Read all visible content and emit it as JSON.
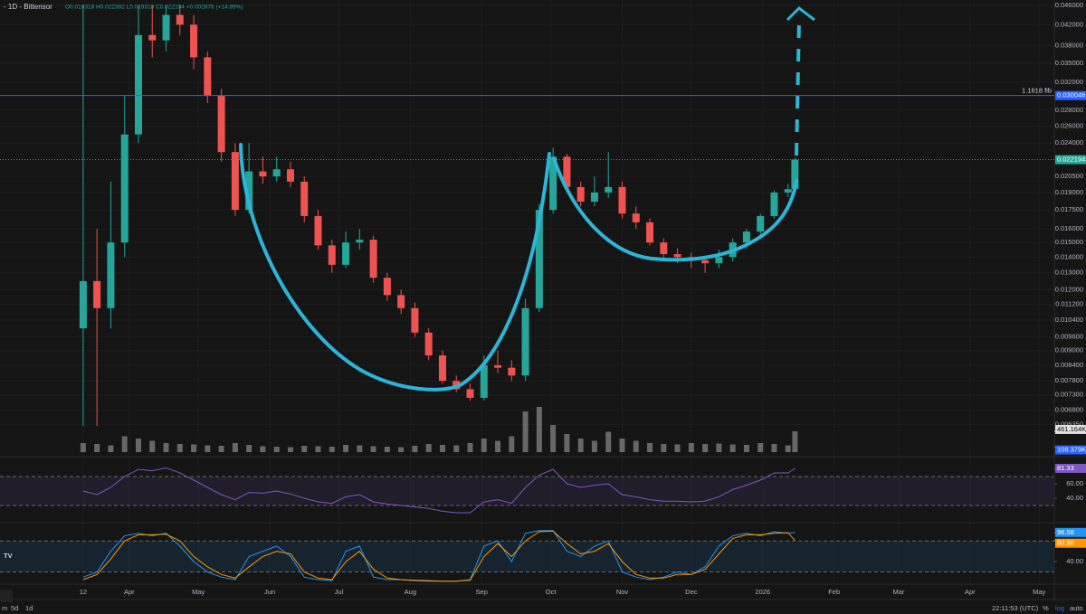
{
  "header": {
    "title": "- 1D - Bittensor",
    "ohlc": "O0.019318 H0.022382 L0.019318 C0.022194 +0.002876 (+14.89%)"
  },
  "toolbar": {
    "ranges": [
      "m",
      "5d",
      "1d"
    ],
    "clock": "22:11:53 (UTC)",
    "options": [
      "%",
      "log",
      "auto"
    ]
  },
  "chart_data": [
    {
      "type": "candlestick",
      "log": true,
      "grid": true,
      "up_color": "#26a69a",
      "down_color": "#ef5350",
      "x": [
        0,
        6,
        12,
        18,
        24,
        30,
        36,
        42,
        48,
        54,
        60,
        66,
        72,
        78,
        84,
        90,
        96,
        102,
        108,
        114,
        120,
        126,
        132,
        138,
        144,
        150,
        156,
        162,
        168,
        174,
        180,
        186,
        192,
        198,
        204,
        210,
        216,
        222,
        228,
        234,
        240,
        246,
        252,
        258,
        264,
        270,
        276,
        282,
        288,
        294,
        300,
        306,
        309
      ],
      "open": [
        0.01,
        0.0125,
        0.011,
        0.015,
        0.025,
        0.04,
        0.039,
        0.044,
        0.042,
        0.036,
        0.03,
        0.023,
        0.0175,
        0.021,
        0.0205,
        0.0212,
        0.02,
        0.017,
        0.0148,
        0.0135,
        0.015,
        0.0152,
        0.0127,
        0.0117,
        0.011,
        0.0098,
        0.0088,
        0.0078,
        0.0075,
        0.0072,
        0.0084,
        0.0083,
        0.008,
        0.011,
        0.0175,
        0.0225,
        0.0195,
        0.0182,
        0.019,
        0.0195,
        0.0172,
        0.0165,
        0.015,
        0.0142,
        0.014,
        0.0138,
        0.0136,
        0.014,
        0.015,
        0.0158,
        0.017,
        0.019,
        0.019318
      ],
      "high": [
        0.046,
        0.016,
        0.02,
        0.03,
        0.046,
        0.046,
        0.046,
        0.046,
        0.044,
        0.037,
        0.031,
        0.024,
        0.024,
        0.0225,
        0.0225,
        0.022,
        0.0205,
        0.0175,
        0.0152,
        0.0158,
        0.016,
        0.0155,
        0.013,
        0.012,
        0.0113,
        0.01,
        0.009,
        0.008,
        0.0077,
        0.0088,
        0.009,
        0.0086,
        0.0115,
        0.018,
        0.0235,
        0.0228,
        0.02,
        0.0205,
        0.023,
        0.02,
        0.0178,
        0.0168,
        0.0153,
        0.0146,
        0.0143,
        0.0141,
        0.0145,
        0.0153,
        0.016,
        0.0172,
        0.0192,
        0.0198,
        0.022382
      ],
      "low": [
        0.0063,
        0.0063,
        0.01,
        0.014,
        0.024,
        0.036,
        0.037,
        0.04,
        0.034,
        0.029,
        0.022,
        0.017,
        0.0172,
        0.0198,
        0.02,
        0.0195,
        0.0165,
        0.0145,
        0.013,
        0.0133,
        0.0145,
        0.0124,
        0.0114,
        0.0107,
        0.0096,
        0.0086,
        0.0077,
        0.0074,
        0.0071,
        0.0071,
        0.0081,
        0.0078,
        0.0078,
        0.0108,
        0.0172,
        0.019,
        0.0178,
        0.0178,
        0.0185,
        0.0168,
        0.016,
        0.0148,
        0.0139,
        0.0136,
        0.0133,
        0.013,
        0.0133,
        0.0137,
        0.0146,
        0.0155,
        0.0168,
        0.0186,
        0.019318
      ],
      "close": [
        0.0125,
        0.011,
        0.015,
        0.025,
        0.04,
        0.039,
        0.044,
        0.042,
        0.036,
        0.03,
        0.023,
        0.0175,
        0.021,
        0.0205,
        0.0212,
        0.02,
        0.017,
        0.0148,
        0.0135,
        0.015,
        0.0152,
        0.0127,
        0.0117,
        0.011,
        0.0098,
        0.0088,
        0.0078,
        0.0075,
        0.0072,
        0.0084,
        0.0083,
        0.008,
        0.011,
        0.0175,
        0.0225,
        0.0195,
        0.0182,
        0.019,
        0.0195,
        0.0172,
        0.0165,
        0.015,
        0.0142,
        0.014,
        0.0138,
        0.0136,
        0.014,
        0.015,
        0.0158,
        0.017,
        0.019,
        0.0193,
        0.022194
      ],
      "volume": [
        200,
        180,
        150,
        350,
        300,
        250,
        200,
        180,
        170,
        150,
        140,
        200,
        160,
        130,
        120,
        110,
        140,
        130,
        120,
        160,
        150,
        130,
        120,
        110,
        140,
        180,
        160,
        150,
        200,
        300,
        250,
        350,
        900,
        1000,
        600,
        400,
        300,
        250,
        450,
        300,
        250,
        200,
        180,
        170,
        200,
        180,
        190,
        170,
        160,
        200,
        180,
        150,
        461.164
      ],
      "vlim": [
        0,
        1300
      ],
      "volume_label": {
        "value": 461.164,
        "label": "461.164K"
      },
      "volume_ma_label": {
        "value": 108.379,
        "label": "108.379K"
      },
      "xlim": [
        -36.1,
        421.6
      ],
      "xticks": [
        {
          "value": 0,
          "label": "12"
        },
        {
          "value": 20,
          "label": "Apr"
        },
        {
          "value": 50,
          "label": "May"
        },
        {
          "value": 81,
          "label": "Jun"
        },
        {
          "value": 111,
          "label": "Jul"
        },
        {
          "value": 142,
          "label": "Aug"
        },
        {
          "value": 173,
          "label": "Sep"
        },
        {
          "value": 203,
          "label": "Oct"
        },
        {
          "value": 234,
          "label": "Nov"
        },
        {
          "value": 264,
          "label": "Dec"
        },
        {
          "value": 295,
          "label": "2026"
        },
        {
          "value": 326,
          "label": "Feb"
        },
        {
          "value": 354,
          "label": "Mar"
        },
        {
          "value": 385,
          "label": "Apr"
        },
        {
          "value": 415,
          "label": "May"
        }
      ],
      "ylim": [
        0.00557,
        0.0472
      ],
      "yticks": [
        {
          "value": 0.046,
          "label": "0.046000"
        },
        {
          "value": 0.042,
          "label": "0.042000"
        },
        {
          "value": 0.038,
          "label": "0.038000"
        },
        {
          "value": 0.035,
          "label": "0.035000"
        },
        {
          "value": 0.032,
          "label": "0.032000"
        },
        {
          "value": 0.028,
          "label": "0.028000"
        },
        {
          "value": 0.026,
          "label": "0.026000"
        },
        {
          "value": 0.024,
          "label": "0.024000"
        },
        {
          "value": 0.0205,
          "label": "0.020500"
        },
        {
          "value": 0.019,
          "label": "0.019000"
        },
        {
          "value": 0.0175,
          "label": "0.017500"
        },
        {
          "value": 0.016,
          "label": "0.016000"
        },
        {
          "value": 0.015,
          "label": "0.015000"
        },
        {
          "value": 0.014,
          "label": "0.014000"
        },
        {
          "value": 0.013,
          "label": "0.013000"
        },
        {
          "value": 0.012,
          "label": "0.012000"
        },
        {
          "value": 0.0112,
          "label": "0.011200"
        },
        {
          "value": 0.0104,
          "label": "0.010400"
        },
        {
          "value": 0.0096,
          "label": "0.009600"
        },
        {
          "value": 0.009,
          "label": "0.009000"
        },
        {
          "value": 0.0084,
          "label": "0.008400"
        },
        {
          "value": 0.0078,
          "label": "0.007800"
        },
        {
          "value": 0.0073,
          "label": "0.007300"
        },
        {
          "value": 0.0068,
          "label": "0.006800"
        },
        {
          "value": 0.00635,
          "label": "0.006350"
        }
      ],
      "fib": {
        "name": "1.1618 fib",
        "value": 0.030046,
        "label": "0.030046",
        "color": "#2962ff"
      },
      "last_price": {
        "value": 0.022194,
        "label": "0.022194",
        "color": "#26a69a"
      }
    },
    {
      "type": "line",
      "ylim": [
        6.25,
        88.75
      ],
      "band": [
        30,
        70
      ],
      "band_color": "#7e57c2",
      "yticks": [
        {
          "value": 60,
          "label": "60.00"
        },
        {
          "value": 40,
          "label": "40.00"
        }
      ],
      "series": [
        {
          "color": "#7e57c2",
          "values": [
            50,
            45,
            55,
            70,
            80,
            78,
            82,
            75,
            65,
            55,
            45,
            38,
            48,
            47,
            50,
            46,
            40,
            35,
            33,
            42,
            45,
            35,
            32,
            30,
            28,
            26,
            22,
            20,
            20,
            35,
            38,
            33,
            55,
            72,
            80,
            60,
            55,
            58,
            60,
            45,
            42,
            38,
            36,
            36,
            35,
            36,
            42,
            52,
            58,
            65,
            75,
            75,
            81.33
          ],
          "last": {
            "value": 81.33,
            "label": "81.33"
          }
        }
      ]
    },
    {
      "type": "line",
      "ylim": [
        -2,
        112
      ],
      "band": [
        20,
        80
      ],
      "band_color": "#2196f3",
      "yticks": [
        {
          "value": 40,
          "label": "40.00"
        }
      ],
      "series": [
        {
          "color": "#2196f3",
          "values": [
            10,
            20,
            60,
            90,
            95,
            90,
            95,
            70,
            40,
            20,
            10,
            5,
            50,
            60,
            70,
            50,
            10,
            5,
            3,
            60,
            70,
            10,
            5,
            5,
            3,
            2,
            2,
            2,
            5,
            70,
            80,
            40,
            95,
            100,
            100,
            60,
            50,
            70,
            80,
            20,
            10,
            5,
            10,
            20,
            15,
            30,
            70,
            90,
            95,
            90,
            98,
            95,
            96.58
          ],
          "last": {
            "value": 96.58,
            "label": "96.58"
          }
        },
        {
          "color": "#ff9800",
          "values": [
            5,
            15,
            45,
            80,
            92,
            92,
            93,
            80,
            50,
            30,
            15,
            8,
            30,
            50,
            60,
            55,
            20,
            8,
            5,
            40,
            60,
            25,
            8,
            5,
            4,
            3,
            2,
            2,
            4,
            50,
            75,
            50,
            80,
            98,
            99,
            75,
            55,
            60,
            75,
            40,
            15,
            8,
            8,
            15,
            15,
            25,
            55,
            85,
            92,
            92,
            95,
            96,
            80.9
          ],
          "last": {
            "value": 80.9,
            "label": "80.90"
          }
        }
      ]
    }
  ]
}
